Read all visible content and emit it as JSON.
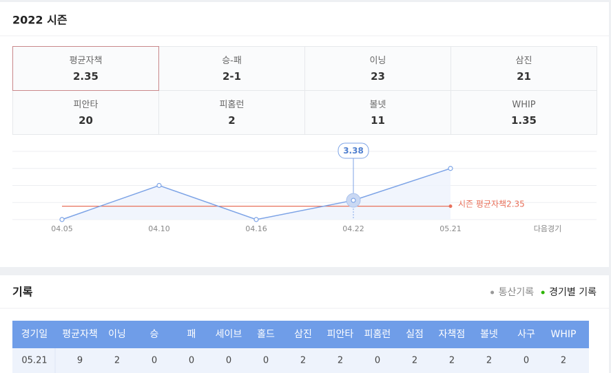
{
  "header": {
    "title": "2022 시즌"
  },
  "stats": [
    {
      "label": "평균자책",
      "value": 2.35
    },
    {
      "label": "승-패",
      "value": "2-1"
    },
    {
      "label": "이닝",
      "value": 23
    },
    {
      "label": "삼진",
      "value": 21
    },
    {
      "label": "피안타",
      "value": 20
    },
    {
      "label": "피홈런",
      "value": 2
    },
    {
      "label": "볼넷",
      "value": 11
    },
    {
      "label": "WHIP",
      "value": 1.35
    }
  ],
  "chart_data": {
    "type": "line",
    "categories": [
      "04.05",
      "04.10",
      "04.16",
      "04.22",
      "05.21",
      "다음경기"
    ],
    "values": [
      0,
      6,
      0,
      3.38,
      9,
      null
    ],
    "color": "#7ca3e6",
    "ylim": [
      0,
      12
    ],
    "yticks": [
      0,
      3,
      6,
      9,
      12
    ],
    "grid": true,
    "highlight_index": 3,
    "reference": {
      "label": "시즌 평균자책",
      "value": 2.35,
      "color": "#e8705a"
    }
  },
  "records": {
    "title": "기록",
    "tabs": [
      "통산기록",
      "경기별 기록"
    ],
    "active_tab": 1,
    "table": {
      "columns": [
        "경기일",
        "평균자책",
        "이닝",
        "승",
        "패",
        "세이브",
        "홀드",
        "삼진",
        "피안타",
        "피홈런",
        "실점",
        "자책점",
        "볼넷",
        "사구",
        "WHIP"
      ],
      "rows": [
        [
          "05.21",
          9,
          2,
          0,
          0,
          0,
          0,
          2,
          2,
          0,
          2,
          2,
          2,
          0,
          2
        ]
      ]
    }
  }
}
